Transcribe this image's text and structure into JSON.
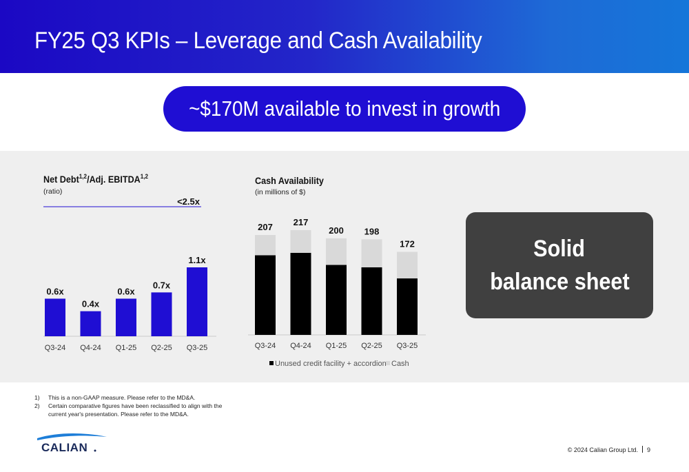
{
  "slide": {
    "title": "FY25 Q3 KPIs – Leverage and Cash Availability",
    "highlight": "~$170M available to invest in growth",
    "callout_line1": "Solid",
    "callout_line2": "balance sheet",
    "footnotes": [
      {
        "num": "1)",
        "text": "This is a non-GAAP measure. Please refer to the MD&A."
      },
      {
        "num": "2)",
        "text": "Certain comparative figures have been reclassified to align with the current year's presentation. Please refer to the MD&A."
      }
    ],
    "logo_text": "CALIAN",
    "copyright": "© 2024 Calian Group Ltd.",
    "page_number": "9",
    "colors": {
      "header_start": "#1b08c4",
      "header_end": "#1576d9",
      "accent": "#1f0ed3",
      "bar_blue": "#1f0ed3",
      "bar_black": "#000000",
      "bar_grey": "#d9d9d9",
      "callout_bg": "#404040"
    }
  },
  "chart_data": [
    {
      "type": "bar",
      "title": "Net Debt",
      "title_sup1": "1,2",
      "title_mid": "/Adj. EBITDA",
      "title_sup2": "1,2",
      "subtitle": "(ratio)",
      "categories": [
        "Q3-24",
        "Q4-24",
        "Q1-25",
        "Q2-25",
        "Q3-25"
      ],
      "values": [
        0.6,
        0.4,
        0.6,
        0.7,
        1.1
      ],
      "labels": [
        "0.6x",
        "0.4x",
        "0.6x",
        "0.7x",
        "1.1x"
      ],
      "threshold_label": "<2.5x",
      "ylim": [
        0,
        1.3
      ]
    },
    {
      "type": "bar",
      "stacked": true,
      "title": "Cash Availability",
      "subtitle": "(in millions of $)",
      "categories": [
        "Q3-24",
        "Q4-24",
        "Q1-25",
        "Q2-25",
        "Q3-25"
      ],
      "series": [
        {
          "name": "Unused credit facility + accordion",
          "values": [
            165,
            170,
            145,
            140,
            117
          ]
        },
        {
          "name": "Cash",
          "values": [
            42,
            47,
            55,
            58,
            55
          ]
        }
      ],
      "totals": [
        207,
        217,
        200,
        198,
        172
      ],
      "ylim": [
        0,
        240
      ]
    }
  ]
}
